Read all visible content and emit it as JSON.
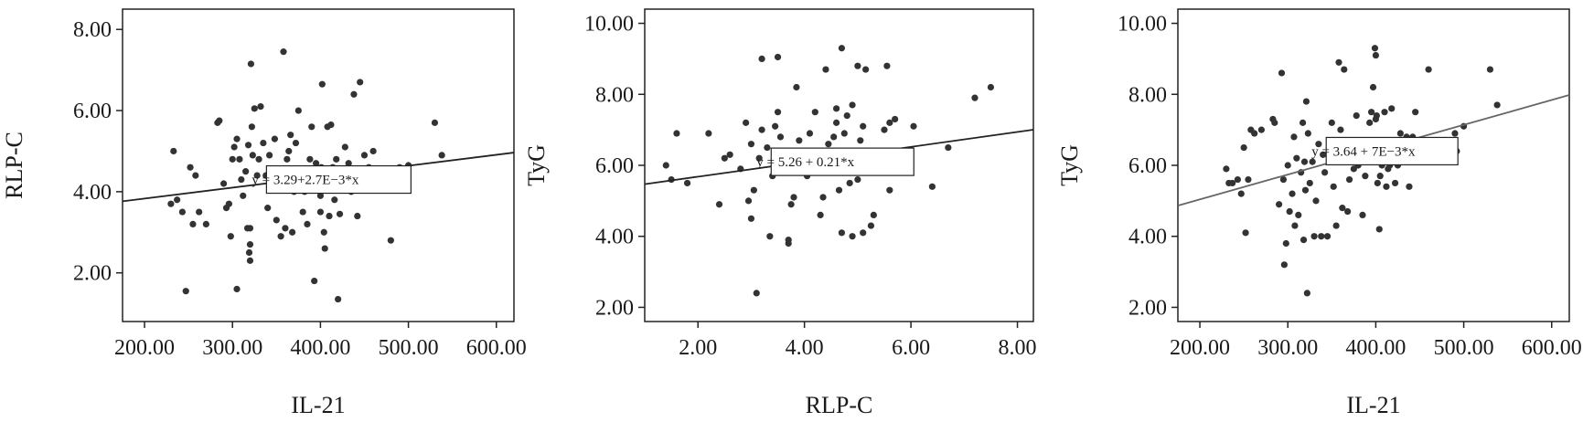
{
  "chart_data": [
    {
      "type": "scatter",
      "xlabel": "IL-21",
      "ylabel": "RLP-C",
      "xlim": [
        175,
        620
      ],
      "ylim": [
        0.8,
        8.5
      ],
      "xticks": [
        200,
        300,
        400,
        500,
        600
      ],
      "xtick_labels": [
        "200.00",
        "300.00",
        "400.00",
        "500.00",
        "600.00"
      ],
      "yticks": [
        2,
        4,
        6,
        8
      ],
      "ytick_labels": [
        "2.00",
        "4.00",
        "6.00",
        "8.00"
      ],
      "grid": false,
      "fit_line": {
        "intercept": 3.29,
        "slope": 0.0027
      },
      "equation": "y = 3.29+2.7E−3*x",
      "equation_anchor": [
        322,
        4.3
      ],
      "points": [
        [
          230,
          3.7
        ],
        [
          233,
          5.0
        ],
        [
          237,
          3.8
        ],
        [
          243,
          3.5
        ],
        [
          247,
          1.55
        ],
        [
          252,
          4.6
        ],
        [
          255,
          3.2
        ],
        [
          258,
          4.4
        ],
        [
          262,
          3.5
        ],
        [
          270,
          3.2
        ],
        [
          283,
          5.7
        ],
        [
          285,
          5.75
        ],
        [
          290,
          4.2
        ],
        [
          293,
          3.6
        ],
        [
          296,
          3.7
        ],
        [
          298,
          2.9
        ],
        [
          300,
          4.8
        ],
        [
          302,
          5.1
        ],
        [
          305,
          5.3
        ],
        [
          305,
          1.6
        ],
        [
          308,
          4.8
        ],
        [
          310,
          4.3
        ],
        [
          312,
          3.9
        ],
        [
          315,
          4.5
        ],
        [
          317,
          3.1
        ],
        [
          318,
          5.15
        ],
        [
          319,
          2.5
        ],
        [
          320,
          3.1
        ],
        [
          320,
          2.7
        ],
        [
          320,
          2.3
        ],
        [
          321,
          7.15
        ],
        [
          322,
          5.6
        ],
        [
          323,
          4.9
        ],
        [
          325,
          6.05
        ],
        [
          328,
          4.4
        ],
        [
          330,
          4.8
        ],
        [
          332,
          6.1
        ],
        [
          335,
          5.2
        ],
        [
          338,
          4.4
        ],
        [
          340,
          3.6
        ],
        [
          342,
          4.9
        ],
        [
          345,
          4.2
        ],
        [
          348,
          5.3
        ],
        [
          350,
          3.3
        ],
        [
          352,
          4.5
        ],
        [
          355,
          2.9
        ],
        [
          358,
          7.45
        ],
        [
          360,
          3.1
        ],
        [
          362,
          4.8
        ],
        [
          364,
          5.0
        ],
        [
          366,
          5.4
        ],
        [
          368,
          3.0
        ],
        [
          370,
          4.0
        ],
        [
          372,
          5.2
        ],
        [
          375,
          6.0
        ],
        [
          378,
          4.3
        ],
        [
          380,
          3.5
        ],
        [
          382,
          4.0
        ],
        [
          385,
          3.2
        ],
        [
          388,
          4.8
        ],
        [
          390,
          5.6
        ],
        [
          393,
          1.8
        ],
        [
          395,
          4.7
        ],
        [
          397,
          4.4
        ],
        [
          399,
          4.1
        ],
        [
          400,
          3.9
        ],
        [
          400,
          3.5
        ],
        [
          401,
          4.6
        ],
        [
          402,
          6.65
        ],
        [
          404,
          3.0
        ],
        [
          405,
          2.6
        ],
        [
          407,
          4.4
        ],
        [
          408,
          5.6
        ],
        [
          410,
          3.4
        ],
        [
          412,
          5.65
        ],
        [
          414,
          4.6
        ],
        [
          416,
          3.8
        ],
        [
          418,
          4.8
        ],
        [
          420,
          1.35
        ],
        [
          422,
          3.45
        ],
        [
          425,
          4.5
        ],
        [
          428,
          5.1
        ],
        [
          432,
          4.7
        ],
        [
          435,
          4.0
        ],
        [
          438,
          6.4
        ],
        [
          442,
          3.4
        ],
        [
          445,
          6.7
        ],
        [
          450,
          4.9
        ],
        [
          455,
          4.6
        ],
        [
          460,
          5.0
        ],
        [
          480,
          2.8
        ],
        [
          485,
          4.1
        ],
        [
          490,
          4.6
        ],
        [
          500,
          4.65
        ],
        [
          530,
          5.7
        ],
        [
          538,
          4.9
        ]
      ]
    },
    {
      "type": "scatter",
      "xlabel": "RLP-C",
      "ylabel": "TyG",
      "xlim": [
        1.0,
        8.3
      ],
      "ylim": [
        1.6,
        10.4
      ],
      "xticks": [
        2,
        4,
        6,
        8
      ],
      "xtick_labels": [
        "2.00",
        "4.00",
        "6.00",
        "8.00"
      ],
      "yticks": [
        2,
        4,
        6,
        8,
        10
      ],
      "ytick_labels": [
        "2.00",
        "4.00",
        "6.00",
        "8.00",
        "10.00"
      ],
      "grid": false,
      "fit_line": {
        "intercept": 5.26,
        "slope": 0.21
      },
      "equation": "y = 5.26 + 0.21*x",
      "equation_anchor": [
        3.1,
        6.1
      ],
      "points": [
        [
          1.4,
          6.0
        ],
        [
          1.5,
          5.6
        ],
        [
          1.6,
          6.9
        ],
        [
          1.8,
          5.5
        ],
        [
          2.2,
          6.9
        ],
        [
          2.4,
          4.9
        ],
        [
          2.5,
          6.2
        ],
        [
          2.6,
          6.3
        ],
        [
          2.8,
          5.9
        ],
        [
          2.9,
          7.2
        ],
        [
          3.0,
          6.6
        ],
        [
          3.0,
          4.5
        ],
        [
          3.05,
          5.3
        ],
        [
          3.1,
          2.4
        ],
        [
          3.15,
          6.2
        ],
        [
          3.2,
          7.0
        ],
        [
          3.2,
          9.0
        ],
        [
          3.3,
          6.5
        ],
        [
          3.4,
          5.7
        ],
        [
          3.45,
          7.1
        ],
        [
          3.5,
          9.05
        ],
        [
          3.5,
          7.5
        ],
        [
          3.55,
          6.8
        ],
        [
          3.6,
          6.0
        ],
        [
          3.7,
          3.9
        ],
        [
          3.7,
          3.8
        ],
        [
          3.75,
          4.9
        ],
        [
          3.8,
          5.1
        ],
        [
          3.85,
          8.2
        ],
        [
          3.9,
          6.7
        ],
        [
          3.95,
          6.1
        ],
        [
          4.0,
          5.9
        ],
        [
          4.05,
          5.7
        ],
        [
          4.1,
          6.9
        ],
        [
          4.2,
          7.5
        ],
        [
          4.25,
          5.8
        ],
        [
          4.3,
          4.6
        ],
        [
          4.4,
          8.7
        ],
        [
          4.45,
          6.6
        ],
        [
          4.5,
          5.9
        ],
        [
          4.55,
          6.8
        ],
        [
          4.6,
          7.2
        ],
        [
          4.6,
          7.6
        ],
        [
          4.65,
          5.3
        ],
        [
          4.7,
          4.1
        ],
        [
          4.7,
          9.3
        ],
        [
          4.75,
          6.9
        ],
        [
          4.8,
          7.4
        ],
        [
          4.85,
          5.5
        ],
        [
          4.9,
          7.7
        ],
        [
          4.9,
          4.0
        ],
        [
          4.95,
          6.2
        ],
        [
          5.0,
          8.8
        ],
        [
          5.0,
          5.6
        ],
        [
          5.05,
          6.7
        ],
        [
          5.1,
          4.1
        ],
        [
          5.1,
          7.1
        ],
        [
          5.15,
          8.7
        ],
        [
          5.2,
          5.8
        ],
        [
          5.25,
          4.3
        ],
        [
          5.3,
          4.6
        ],
        [
          5.35,
          6.1
        ],
        [
          5.4,
          6.4
        ],
        [
          5.5,
          7.0
        ],
        [
          5.55,
          8.8
        ],
        [
          5.6,
          7.2
        ],
        [
          5.6,
          5.3
        ],
        [
          5.7,
          7.3
        ],
        [
          6.0,
          6.4
        ],
        [
          6.05,
          7.1
        ],
        [
          6.4,
          5.4
        ],
        [
          6.7,
          6.5
        ],
        [
          7.2,
          7.9
        ],
        [
          7.5,
          8.2
        ],
        [
          4.35,
          5.1
        ],
        [
          3.35,
          4.0
        ],
        [
          4.15,
          6.3
        ],
        [
          2.95,
          5.0
        ]
      ]
    },
    {
      "type": "scatter",
      "xlabel": "IL-21",
      "ylabel": "TyG",
      "xlim": [
        175,
        620
      ],
      "ylim": [
        1.6,
        10.4
      ],
      "xticks": [
        200,
        300,
        400,
        500,
        600
      ],
      "xtick_labels": [
        "200.00",
        "300.00",
        "400.00",
        "500.00",
        "600.00"
      ],
      "yticks": [
        2,
        4,
        6,
        8,
        10
      ],
      "ytick_labels": [
        "2.00",
        "4.00",
        "6.00",
        "8.00",
        "10.00"
      ],
      "grid": false,
      "fit_line": {
        "intercept": 3.64,
        "slope": 0.007
      },
      "equation": "y = 3.64 + 7E−3*x",
      "equation_anchor": [
        327,
        6.4
      ],
      "points": [
        [
          230,
          5.9
        ],
        [
          233,
          5.5
        ],
        [
          237,
          5.5
        ],
        [
          243,
          5.6
        ],
        [
          247,
          5.2
        ],
        [
          250,
          6.5
        ],
        [
          252,
          4.1
        ],
        [
          255,
          5.6
        ],
        [
          258,
          7.0
        ],
        [
          262,
          6.9
        ],
        [
          270,
          7.0
        ],
        [
          283,
          7.3
        ],
        [
          285,
          7.2
        ],
        [
          290,
          4.9
        ],
        [
          293,
          8.6
        ],
        [
          295,
          5.6
        ],
        [
          296,
          3.2
        ],
        [
          298,
          3.8
        ],
        [
          300,
          6.0
        ],
        [
          302,
          4.7
        ],
        [
          305,
          5.2
        ],
        [
          307,
          6.8
        ],
        [
          308,
          4.3
        ],
        [
          310,
          6.2
        ],
        [
          312,
          4.6
        ],
        [
          315,
          5.8
        ],
        [
          317,
          7.2
        ],
        [
          318,
          3.9
        ],
        [
          319,
          6.1
        ],
        [
          320,
          5.3
        ],
        [
          321,
          7.8
        ],
        [
          322,
          2.4
        ],
        [
          323,
          6.9
        ],
        [
          325,
          5.5
        ],
        [
          328,
          6.1
        ],
        [
          330,
          4.0
        ],
        [
          332,
          5.0
        ],
        [
          335,
          6.6
        ],
        [
          338,
          4.0
        ],
        [
          340,
          6.3
        ],
        [
          342,
          5.8
        ],
        [
          345,
          4.0
        ],
        [
          348,
          6.5
        ],
        [
          350,
          7.2
        ],
        [
          352,
          5.4
        ],
        [
          355,
          4.3
        ],
        [
          358,
          8.9
        ],
        [
          360,
          7.0
        ],
        [
          362,
          4.8
        ],
        [
          364,
          8.7
        ],
        [
          366,
          6.6
        ],
        [
          368,
          4.7
        ],
        [
          370,
          5.6
        ],
        [
          372,
          6.3
        ],
        [
          375,
          5.9
        ],
        [
          378,
          7.4
        ],
        [
          380,
          6.0
        ],
        [
          382,
          6.6
        ],
        [
          385,
          4.6
        ],
        [
          388,
          5.7
        ],
        [
          390,
          6.2
        ],
        [
          393,
          7.2
        ],
        [
          395,
          7.5
        ],
        [
          397,
          8.2
        ],
        [
          399,
          9.3
        ],
        [
          400,
          9.1
        ],
        [
          400,
          7.3
        ],
        [
          401,
          7.4
        ],
        [
          402,
          5.5
        ],
        [
          404,
          4.2
        ],
        [
          405,
          5.7
        ],
        [
          407,
          6.0
        ],
        [
          408,
          6.7
        ],
        [
          410,
          7.5
        ],
        [
          412,
          5.4
        ],
        [
          414,
          5.9
        ],
        [
          416,
          6.0
        ],
        [
          418,
          7.6
        ],
        [
          420,
          6.4
        ],
        [
          422,
          5.5
        ],
        [
          425,
          6.0
        ],
        [
          428,
          6.9
        ],
        [
          432,
          6.4
        ],
        [
          435,
          6.8
        ],
        [
          438,
          5.4
        ],
        [
          442,
          6.8
        ],
        [
          445,
          7.5
        ],
        [
          460,
          8.7
        ],
        [
          490,
          6.9
        ],
        [
          492,
          6.4
        ],
        [
          500,
          7.1
        ],
        [
          530,
          8.7
        ],
        [
          538,
          7.7
        ]
      ]
    }
  ]
}
